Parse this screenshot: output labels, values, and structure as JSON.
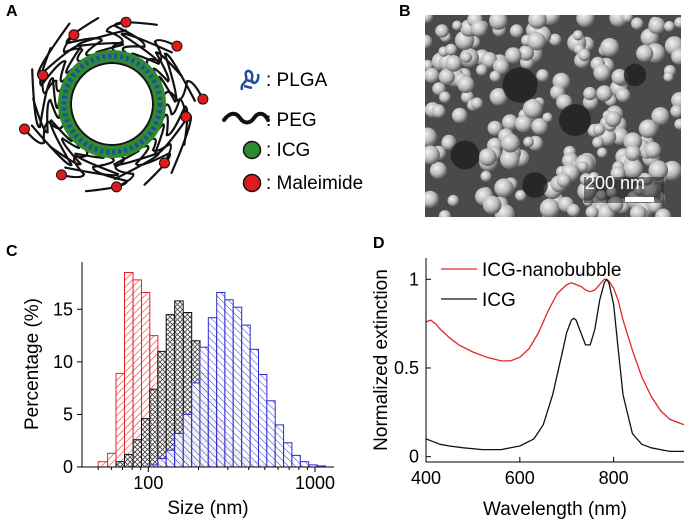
{
  "panels": {
    "a": "A",
    "b": "B",
    "c": "C",
    "d": "D"
  },
  "legend_a": {
    "plga": ": PLGA",
    "peg": ": PEG",
    "icg": ": ICG",
    "maleimide": ": Maleimide"
  },
  "colors": {
    "plga": "#1f4fa0",
    "peg": "#111111",
    "icg": "#2e8b2e",
    "maleimide": "#e01b1b",
    "red": "#e32626",
    "black": "#111111",
    "blue": "#2a2ad0"
  },
  "sem": {
    "scale_label": "200 nm"
  },
  "chart_data": [
    {
      "type": "bar",
      "title": "",
      "xlabel": "Size (nm)",
      "ylabel": "Percentage (%)",
      "xscale": "log",
      "xlim": [
        40,
        1300
      ],
      "ylim": [
        0,
        19.5
      ],
      "xticks": [
        100,
        1000
      ],
      "xtick_labels": [
        "100",
        "1000"
      ],
      "yticks": [
        0,
        5,
        10,
        15
      ],
      "ytick_labels": [
        "0",
        "5",
        "10",
        "15"
      ],
      "series": [
        {
          "name": "red",
          "edges": [
            50,
            57,
            64,
            72,
            81,
            91,
            102,
            114,
            128,
            144,
            162,
            182,
            204,
            229,
            257,
            288
          ],
          "values": [
            0.5,
            1.3,
            8.9,
            18.5,
            17.8,
            16.6,
            12.5,
            9.5,
            6.4,
            4.5,
            3.3,
            2.0,
            1.3,
            0.6,
            0.3
          ]
        },
        {
          "name": "black",
          "edges": [
            64,
            72,
            81,
            91,
            102,
            114,
            128,
            144,
            162,
            182,
            204,
            229,
            257,
            288,
            323,
            363,
            408,
            458,
            514,
            577
          ],
          "values": [
            0.5,
            1.2,
            2.6,
            4.6,
            7.4,
            11.0,
            14.5,
            15.8,
            14.7,
            12.0,
            8.9,
            6.4,
            4.4,
            2.7,
            1.6,
            0.9,
            0.5,
            0.2,
            0.1
          ]
        },
        {
          "name": "blue",
          "edges": [
            102,
            114,
            128,
            144,
            162,
            182,
            204,
            229,
            257,
            288,
            323,
            363,
            408,
            458,
            514,
            577,
            648,
            727,
            816,
            916,
            1028,
            1154
          ],
          "values": [
            0.2,
            0.8,
            1.6,
            3.2,
            5.0,
            8.0,
            11.4,
            14.2,
            16.6,
            15.9,
            15.2,
            13.5,
            11.2,
            8.8,
            6.3,
            4.0,
            2.3,
            1.1,
            0.5,
            0.2,
            0.1
          ]
        }
      ]
    },
    {
      "type": "line",
      "title": "",
      "xlabel": "Wavelength (nm)",
      "ylabel": "Normalized extinction",
      "xlim": [
        400,
        950
      ],
      "ylim": [
        -0.03,
        1.12
      ],
      "xticks": [
        400,
        600,
        800
      ],
      "xtick_labels": [
        "400",
        "600",
        "800"
      ],
      "yticks": [
        0,
        0.5,
        1
      ],
      "ytick_labels": [
        "0",
        "0.5",
        "1"
      ],
      "series": [
        {
          "name": "ICG-nanobubble",
          "x": [
            400,
            410,
            420,
            430,
            450,
            470,
            500,
            530,
            560,
            580,
            600,
            620,
            640,
            660,
            680,
            700,
            710,
            720,
            730,
            740,
            750,
            760,
            770,
            780,
            785,
            790,
            800,
            810,
            820,
            840,
            860,
            880,
            900,
            920,
            940,
            950
          ],
          "y": [
            0.76,
            0.77,
            0.75,
            0.72,
            0.67,
            0.63,
            0.59,
            0.56,
            0.54,
            0.54,
            0.56,
            0.61,
            0.7,
            0.82,
            0.92,
            0.97,
            0.98,
            0.97,
            0.96,
            0.94,
            0.93,
            0.94,
            0.97,
            1.0,
            1.0,
            0.99,
            0.95,
            0.88,
            0.77,
            0.6,
            0.45,
            0.34,
            0.26,
            0.21,
            0.19,
            0.18
          ]
        },
        {
          "name": "ICG",
          "x": [
            400,
            410,
            430,
            450,
            480,
            520,
            560,
            600,
            630,
            650,
            670,
            690,
            700,
            710,
            715,
            720,
            730,
            740,
            750,
            760,
            770,
            780,
            785,
            790,
            800,
            810,
            820,
            840,
            860,
            880,
            900,
            920,
            950
          ],
          "y": [
            0.1,
            0.09,
            0.07,
            0.06,
            0.05,
            0.04,
            0.04,
            0.06,
            0.1,
            0.18,
            0.35,
            0.58,
            0.7,
            0.77,
            0.78,
            0.77,
            0.7,
            0.63,
            0.63,
            0.72,
            0.88,
            0.98,
            1.0,
            0.98,
            0.86,
            0.6,
            0.35,
            0.13,
            0.07,
            0.05,
            0.04,
            0.03,
            0.03
          ]
        }
      ]
    }
  ]
}
